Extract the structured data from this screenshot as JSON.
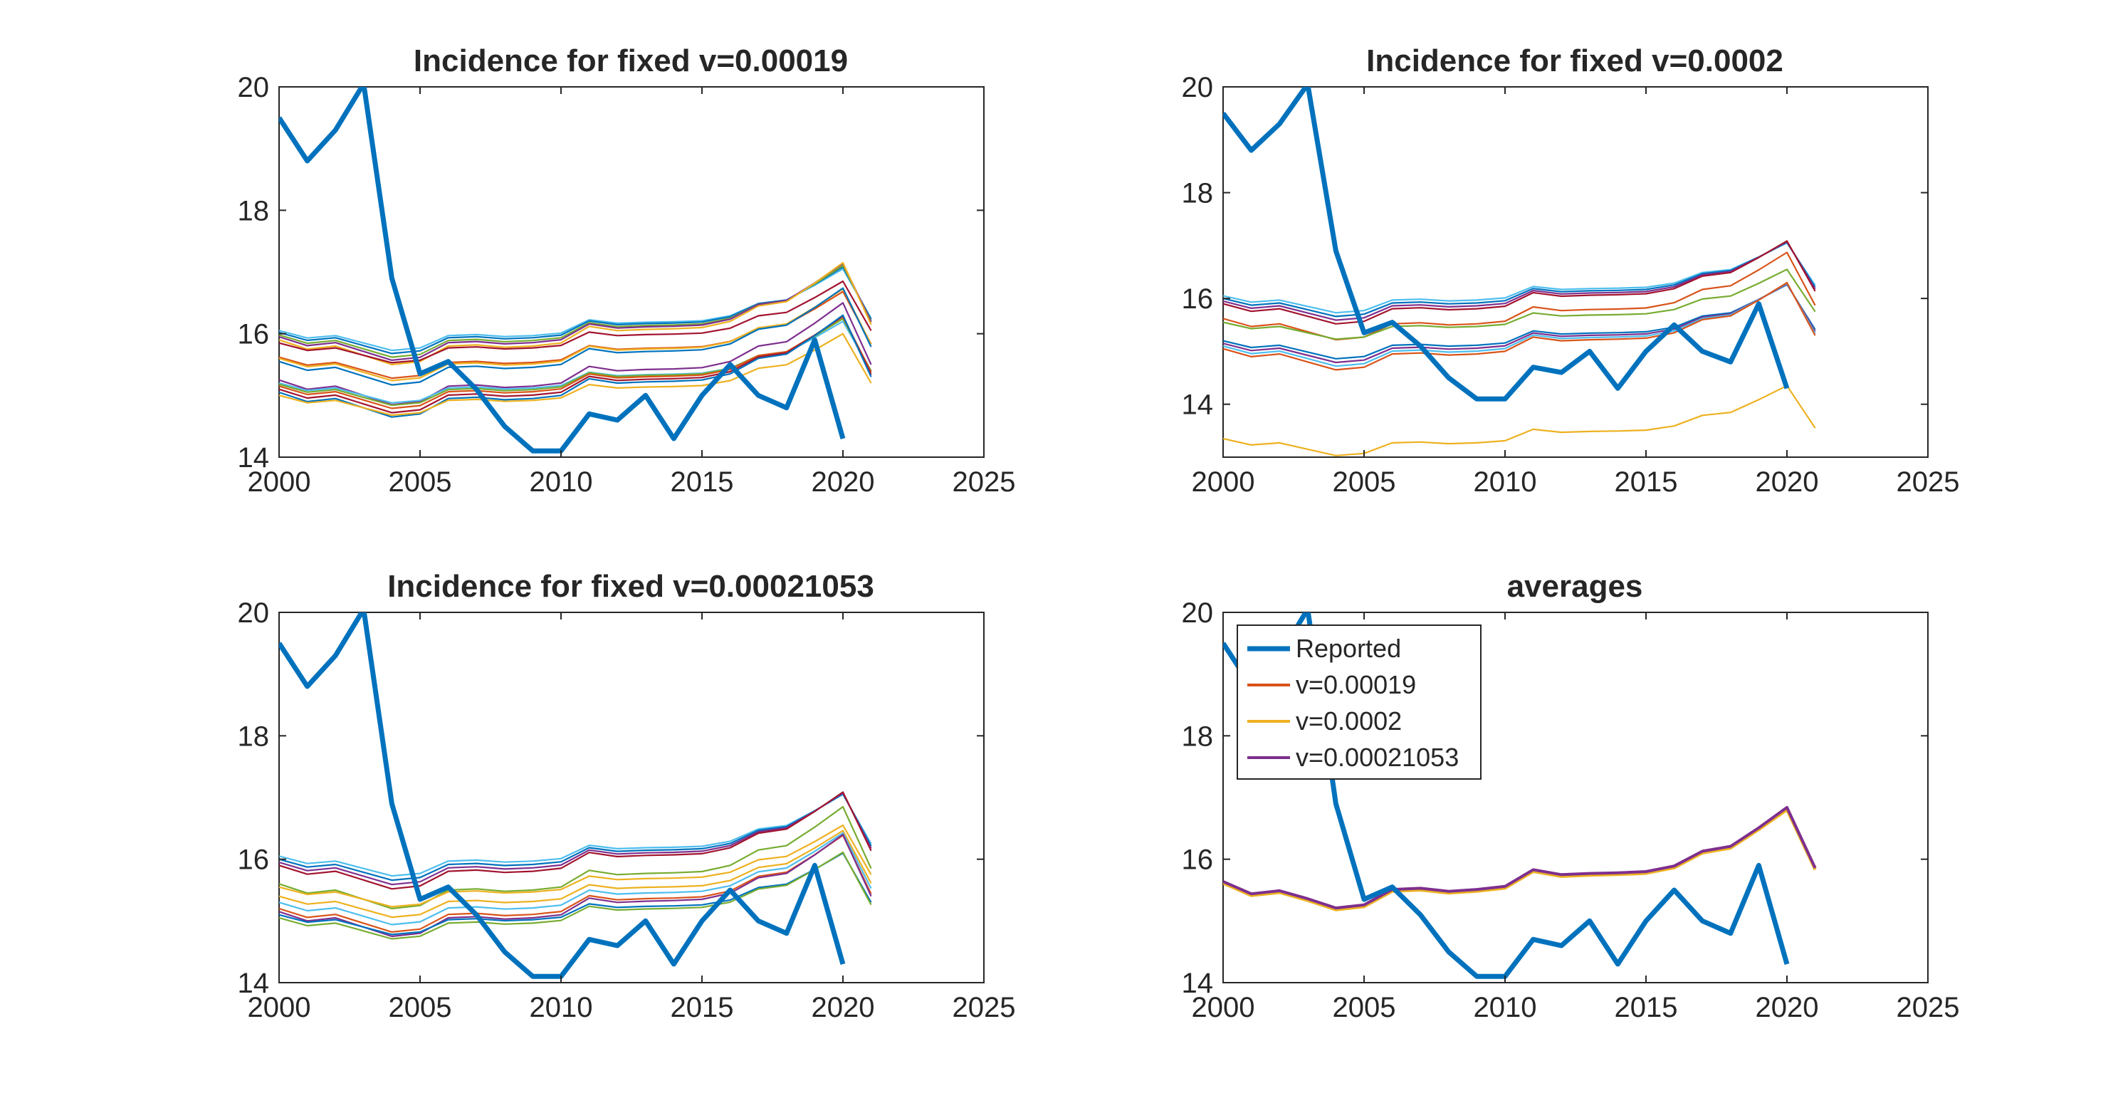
{
  "figure": {
    "panels": [
      "p1",
      "p2",
      "p3",
      "p4"
    ]
  },
  "chart_data": [
    {
      "id": "p1",
      "type": "line",
      "title": "Incidence for fixed v=0.00019",
      "xlabel": "",
      "ylabel": "",
      "xlim": [
        2000,
        2025
      ],
      "ylim": [
        14,
        20
      ],
      "xticks": [
        "2000",
        "2005",
        "2010",
        "2015",
        "2020",
        "2025"
      ],
      "yticks": [
        "14",
        "16",
        "18",
        "20"
      ],
      "reported": {
        "name": "Reported",
        "x": [
          2000,
          2001,
          2002,
          2003,
          2004,
          2005,
          2006,
          2007,
          2008,
          2009,
          2010,
          2011,
          2012,
          2013,
          2014,
          2015,
          2016,
          2017,
          2018,
          2019,
          2020
        ],
        "y": [
          19.5,
          18.8,
          19.3,
          20.05,
          16.9,
          15.35,
          15.55,
          15.1,
          14.5,
          14.1,
          14.1,
          14.7,
          14.6,
          15.0,
          14.3,
          15.0,
          15.5,
          15.0,
          14.8,
          15.9,
          14.3
        ]
      },
      "sim_x": [
        2000,
        2001,
        2002,
        2003,
        2004,
        2005,
        2006,
        2007,
        2008,
        2009,
        2010,
        2011,
        2012,
        2013,
        2014,
        2015,
        2016,
        2017,
        2018,
        2019,
        2020,
        2021
      ],
      "sim_bases": [
        {
          "b": 16.05,
          "c": "#4dbeee"
        },
        {
          "b": 16.02,
          "c": "#0072bd"
        },
        {
          "b": 15.98,
          "c": "#77ac30"
        },
        {
          "b": 15.95,
          "c": "#7e2f8e"
        },
        {
          "b": 15.9,
          "c": "#edb120"
        },
        {
          "b": 15.85,
          "c": "#a2142f"
        },
        {
          "b": 15.62,
          "c": "#d95319"
        },
        {
          "b": 15.6,
          "c": "#edb120"
        },
        {
          "b": 15.55,
          "c": "#0072bd"
        },
        {
          "b": 15.25,
          "c": "#7e2f8e"
        },
        {
          "b": 15.2,
          "c": "#4dbeee"
        },
        {
          "b": 15.18,
          "c": "#77ac30"
        },
        {
          "b": 15.15,
          "c": "#d95319"
        },
        {
          "b": 15.1,
          "c": "#a2142f"
        },
        {
          "b": 15.05,
          "c": "#0072bd"
        },
        {
          "b": 15.0,
          "c": "#edb120"
        }
      ]
    },
    {
      "id": "p2",
      "type": "line",
      "title": "Incidence for fixed v=0.0002",
      "xlabel": "",
      "ylabel": "",
      "xlim": [
        2000,
        2025
      ],
      "ylim": [
        13,
        20
      ],
      "xticks": [
        "2000",
        "2005",
        "2010",
        "2015",
        "2020",
        "2025"
      ],
      "yticks": [
        "14",
        "16",
        "18",
        "20"
      ],
      "reported": {
        "name": "Reported",
        "x": [
          2000,
          2001,
          2002,
          2003,
          2004,
          2005,
          2006,
          2007,
          2008,
          2009,
          2010,
          2011,
          2012,
          2013,
          2014,
          2015,
          2016,
          2017,
          2018,
          2019,
          2020
        ],
        "y": [
          19.5,
          18.8,
          19.3,
          20.05,
          16.9,
          15.35,
          15.55,
          15.1,
          14.5,
          14.1,
          14.1,
          14.7,
          14.6,
          15.0,
          14.3,
          15.0,
          15.5,
          15.0,
          14.8,
          15.9,
          14.3
        ]
      },
      "sim_x": [
        2000,
        2001,
        2002,
        2003,
        2004,
        2005,
        2006,
        2007,
        2008,
        2009,
        2010,
        2011,
        2012,
        2013,
        2014,
        2015,
        2016,
        2017,
        2018,
        2019,
        2020,
        2021
      ],
      "sim_bases": [
        {
          "b": 16.05,
          "c": "#4dbeee"
        },
        {
          "b": 16.0,
          "c": "#0072bd"
        },
        {
          "b": 15.95,
          "c": "#7e2f8e"
        },
        {
          "b": 15.9,
          "c": "#a2142f"
        },
        {
          "b": 15.62,
          "c": "#d95319"
        },
        {
          "b": 15.55,
          "c": "#77ac30"
        },
        {
          "b": 15.2,
          "c": "#0072bd"
        },
        {
          "b": 15.15,
          "c": "#7e2f8e"
        },
        {
          "b": 15.1,
          "c": "#4dbeee"
        },
        {
          "b": 15.05,
          "c": "#d95319"
        },
        {
          "b": 13.35,
          "c": "#edb120"
        }
      ]
    },
    {
      "id": "p3",
      "type": "line",
      "title": "Incidence for fixed v=0.00021053",
      "xlabel": "",
      "ylabel": "",
      "xlim": [
        2000,
        2025
      ],
      "ylim": [
        14,
        20
      ],
      "xticks": [
        "2000",
        "2005",
        "2010",
        "2015",
        "2020",
        "2025"
      ],
      "yticks": [
        "14",
        "16",
        "18",
        "20"
      ],
      "reported": {
        "name": "Reported",
        "x": [
          2000,
          2001,
          2002,
          2003,
          2004,
          2005,
          2006,
          2007,
          2008,
          2009,
          2010,
          2011,
          2012,
          2013,
          2014,
          2015,
          2016,
          2017,
          2018,
          2019,
          2020
        ],
        "y": [
          19.5,
          18.8,
          19.3,
          20.05,
          16.9,
          15.35,
          15.55,
          15.1,
          14.5,
          14.1,
          14.1,
          14.7,
          14.6,
          15.0,
          14.3,
          15.0,
          15.5,
          15.0,
          14.8,
          15.9,
          14.3
        ]
      },
      "sim_x": [
        2000,
        2001,
        2002,
        2003,
        2004,
        2005,
        2006,
        2007,
        2008,
        2009,
        2010,
        2011,
        2012,
        2013,
        2014,
        2015,
        2016,
        2017,
        2018,
        2019,
        2020,
        2021
      ],
      "sim_bases": [
        {
          "b": 16.05,
          "c": "#4dbeee"
        },
        {
          "b": 16.0,
          "c": "#0072bd"
        },
        {
          "b": 15.95,
          "c": "#7e2f8e"
        },
        {
          "b": 15.9,
          "c": "#a2142f"
        },
        {
          "b": 15.6,
          "c": "#77ac30"
        },
        {
          "b": 15.55,
          "c": "#edb120"
        },
        {
          "b": 15.4,
          "c": "#edb120"
        },
        {
          "b": 15.3,
          "c": "#4dbeee"
        },
        {
          "b": 15.2,
          "c": "#d95319"
        },
        {
          "b": 15.15,
          "c": "#7e2f8e"
        },
        {
          "b": 15.1,
          "c": "#0072bd"
        },
        {
          "b": 15.05,
          "c": "#77ac30"
        }
      ]
    },
    {
      "id": "p4",
      "type": "line",
      "title": "averages",
      "xlabel": "",
      "ylabel": "",
      "xlim": [
        2000,
        2025
      ],
      "ylim": [
        14,
        20
      ],
      "xticks": [
        "2000",
        "2005",
        "2010",
        "2015",
        "2020",
        "2025"
      ],
      "yticks": [
        "14",
        "16",
        "18",
        "20"
      ],
      "legend": {
        "placement": "top-left",
        "entries": [
          {
            "label": "Reported",
            "color": "#0072bd"
          },
          {
            "label": "v=0.00019",
            "color": "#d95319"
          },
          {
            "label": "v=0.0002",
            "color": "#edb120"
          },
          {
            "label": "v=0.00021053",
            "color": "#7e2f8e"
          }
        ]
      },
      "reported": {
        "name": "Reported",
        "x": [
          2000,
          2001,
          2002,
          2003,
          2004,
          2005,
          2006,
          2007,
          2008,
          2009,
          2010,
          2011,
          2012,
          2013,
          2014,
          2015,
          2016,
          2017,
          2018,
          2019,
          2020
        ],
        "y": [
          19.5,
          18.8,
          19.3,
          20.05,
          16.9,
          15.35,
          15.55,
          15.1,
          14.5,
          14.1,
          14.1,
          14.7,
          14.6,
          15.0,
          14.3,
          15.0,
          15.5,
          15.0,
          14.8,
          15.9,
          14.3
        ]
      },
      "averages": [
        {
          "name": "v=0.00019",
          "color": "#d95319",
          "x": [
            2000,
            2001,
            2002,
            2003,
            2004,
            2005,
            2006,
            2007,
            2008,
            2009,
            2010,
            2011,
            2012,
            2013,
            2014,
            2015,
            2016,
            2017,
            2018,
            2019,
            2020,
            2021
          ],
          "y": [
            15.63,
            15.43,
            15.48,
            15.35,
            15.2,
            15.25,
            15.5,
            15.52,
            15.47,
            15.5,
            15.55,
            15.82,
            15.74,
            15.76,
            15.77,
            15.79,
            15.88,
            16.12,
            16.2,
            16.5,
            16.82,
            15.85
          ]
        },
        {
          "name": "v=0.0002",
          "color": "#edb120",
          "x": [
            2000,
            2001,
            2002,
            2003,
            2004,
            2005,
            2006,
            2007,
            2008,
            2009,
            2010,
            2011,
            2012,
            2013,
            2014,
            2015,
            2016,
            2017,
            2018,
            2019,
            2020,
            2021
          ],
          "y": [
            15.61,
            15.41,
            15.46,
            15.33,
            15.18,
            15.23,
            15.48,
            15.5,
            15.45,
            15.48,
            15.53,
            15.8,
            15.72,
            15.74,
            15.75,
            15.77,
            15.86,
            16.1,
            16.18,
            16.48,
            16.8,
            15.83
          ]
        },
        {
          "name": "v=0.00021053",
          "color": "#7e2f8e",
          "x": [
            2000,
            2001,
            2002,
            2003,
            2004,
            2005,
            2006,
            2007,
            2008,
            2009,
            2010,
            2011,
            2012,
            2013,
            2014,
            2015,
            2016,
            2017,
            2018,
            2019,
            2020,
            2021
          ],
          "y": [
            15.64,
            15.44,
            15.49,
            15.36,
            15.21,
            15.26,
            15.51,
            15.53,
            15.48,
            15.51,
            15.56,
            15.83,
            15.75,
            15.77,
            15.78,
            15.8,
            15.89,
            16.13,
            16.21,
            16.51,
            16.84,
            15.86
          ]
        }
      ]
    }
  ]
}
